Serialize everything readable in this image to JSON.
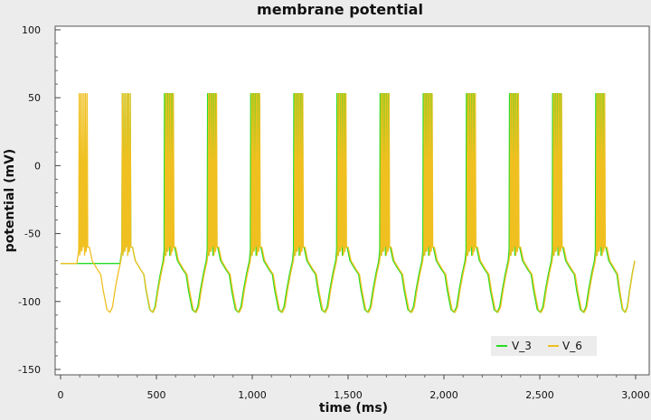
{
  "chart_data": {
    "type": "line",
    "title": "membrane potential",
    "xlabel": "time (ms)",
    "ylabel": "potential (mV)",
    "xlim": [
      0,
      3000
    ],
    "ylim": [
      -150,
      100
    ],
    "x_ticks": [
      0,
      500,
      1000,
      1500,
      2000,
      2500,
      3000
    ],
    "x_tick_labels": [
      "0",
      "500",
      "1,000",
      "1,500",
      "2,000",
      "2,500",
      "3,000"
    ],
    "y_ticks": [
      -150,
      -100,
      -50,
      0,
      50,
      100
    ],
    "y_tick_labels": [
      "-150",
      "-100",
      "-50",
      "0",
      "50",
      "100"
    ],
    "grid": false,
    "legend_position": "bottom-right",
    "background_color": "#ffffff",
    "series": [
      {
        "name": "V_3",
        "color": "#22dd22",
        "baseline_mV": -72,
        "burst_starts_ms": [
          320,
          540,
          765,
          990,
          1215,
          1440,
          1665,
          1890,
          2115,
          2340,
          2565,
          2790
        ],
        "peak_mV": 53,
        "trough_mV": -108
      },
      {
        "name": "V_6",
        "color": "#f0c020",
        "baseline_mV": -72,
        "burst_starts_ms": [
          95,
          320,
          545,
          770,
          995,
          1220,
          1445,
          1670,
          1895,
          2120,
          2345,
          2570,
          2795
        ],
        "peak_mV": 53,
        "trough_mV": -108
      }
    ]
  }
}
